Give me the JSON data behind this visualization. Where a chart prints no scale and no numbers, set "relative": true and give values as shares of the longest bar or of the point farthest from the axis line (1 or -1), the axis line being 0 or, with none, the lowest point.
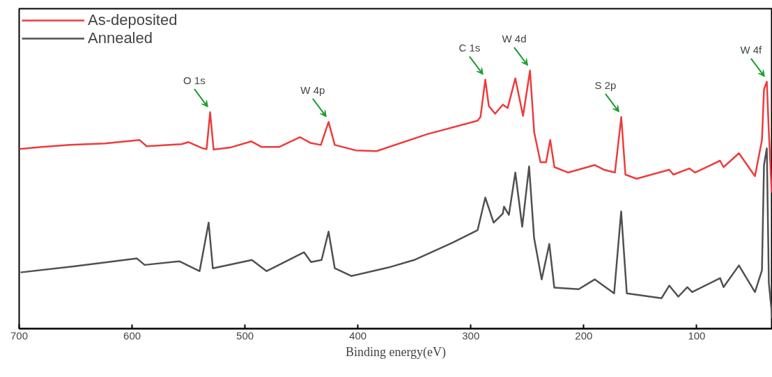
{
  "chart_data": {
    "type": "line",
    "xlabel": "Binding energy(eV)",
    "relative": true,
    "xlim": [
      700,
      33
    ],
    "xticks": [
      700,
      600,
      500,
      400,
      300,
      200,
      100
    ],
    "grid": false,
    "legend": "top left",
    "marker": "none",
    "line_style": "solid",
    "series": [
      {
        "name": "As-deposited",
        "color": "#ee3b3b",
        "x": [
          700,
          679.6,
          655.0,
          624.1,
          593.3,
          587.1,
          556.2,
          550.0,
          537.7,
          534.0,
          530.9,
          527.8,
          513.0,
          494.5,
          485.3,
          469.8,
          451.3,
          442.1,
          432.8,
          426.0,
          420.5,
          402.0,
          383.5,
          339.1,
          294.0,
          291.5,
          287.2,
          284.1,
          278.5,
          271.7,
          267.4,
          260.6,
          253.8,
          247.6,
          243.9,
          238.3,
          233.4,
          229.7,
          226.0,
          213.7,
          190.2,
          182.2,
          172.4,
          166.8,
          163.1,
          153.3,
          124.3,
          120.6,
          106.4,
          101.5,
          79.3,
          76.2,
          62.6,
          48.4,
          42.2,
          40.4,
          37.9,
          36.1,
          33.6
        ],
        "values": [
          0.696,
          0.704,
          0.712,
          0.718,
          0.731,
          0.707,
          0.715,
          0.723,
          0.699,
          0.696,
          0.839,
          0.694,
          0.702,
          0.726,
          0.704,
          0.704,
          0.742,
          0.72,
          0.712,
          0.801,
          0.712,
          0.691,
          0.688,
          0.753,
          0.806,
          0.82,
          0.965,
          0.863,
          0.833,
          0.868,
          0.855,
          0.97,
          0.825,
          1.0,
          0.761,
          0.645,
          0.645,
          0.731,
          0.626,
          0.605,
          0.634,
          0.616,
          0.605,
          0.82,
          0.597,
          0.581,
          0.616,
          0.597,
          0.621,
          0.605,
          0.651,
          0.626,
          0.68,
          0.591,
          0.731,
          0.927,
          0.957,
          0.761,
          0.527
        ]
      },
      {
        "name": "Annealed",
        "color": "#505050",
        "x": [
          698.8,
          650.6,
          595.7,
          588.9,
          558.1,
          540.2,
          532.2,
          528.5,
          493.9,
          481.0,
          447.7,
          441.5,
          432.2,
          426.0,
          420.5,
          405.7,
          373.0,
          350.2,
          316.2,
          294.0,
          287.2,
          279.8,
          271.7,
          270.6,
          266.3,
          260.6,
          254.5,
          248.4,
          244.0,
          237.3,
          230.5,
          226.1,
          204.5,
          190.2,
          173.1,
          166.9,
          161.9,
          131.1,
          124.3,
          116.3,
          108.3,
          104.0,
          79.3,
          76.2,
          62.6,
          48.4,
          42.2,
          40.4,
          37.9,
          36.1,
          33.0
        ],
        "values": [
          0.218,
          0.242,
          0.272,
          0.247,
          0.261,
          0.223,
          0.411,
          0.234,
          0.266,
          0.223,
          0.296,
          0.258,
          0.266,
          0.376,
          0.234,
          0.204,
          0.237,
          0.266,
          0.333,
          0.382,
          0.508,
          0.411,
          0.446,
          0.473,
          0.441,
          0.605,
          0.395,
          0.629,
          0.352,
          0.191,
          0.328,
          0.159,
          0.153,
          0.191,
          0.137,
          0.454,
          0.137,
          0.118,
          0.167,
          0.124,
          0.161,
          0.142,
          0.196,
          0.161,
          0.245,
          0.142,
          0.226,
          0.634,
          0.699,
          0.177,
          0.04
        ]
      }
    ],
    "annotations": [
      {
        "text": "O 1s",
        "x": 530.9,
        "y": 0.839
      },
      {
        "text": "W 4p",
        "x": 426.0,
        "y": 0.801
      },
      {
        "text": "C 1s",
        "x": 287.2,
        "y": 0.965
      },
      {
        "text": "W 4d",
        "x": 247.6,
        "y": 1.0
      },
      {
        "text": "S 2p",
        "x": 166.8,
        "y": 0.82
      },
      {
        "text": "W 4f",
        "x": 37.9,
        "y": 0.957
      }
    ]
  }
}
